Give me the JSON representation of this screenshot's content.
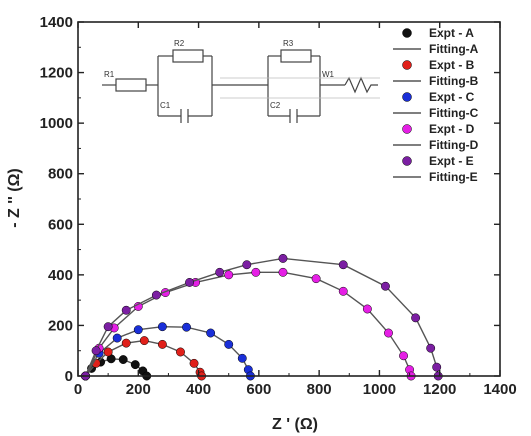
{
  "chart_data": {
    "type": "scatter",
    "xlabel": "Z ' (Ω)",
    "ylabel": "- Z '' (Ω)",
    "xlim": [
      0,
      1400
    ],
    "ylim": [
      0,
      1400
    ],
    "x_ticks": [
      "0",
      "200",
      "400",
      "600",
      "800",
      "1000",
      "1200",
      "1400"
    ],
    "y_ticks": [
      "0",
      "200",
      "400",
      "600",
      "800",
      "1000",
      "1200",
      "1400"
    ],
    "grid": false,
    "legend_position": "top-right",
    "legend": [
      "Expt - A",
      "Fitting-A",
      "Expt - B",
      "Fitting-B",
      "Expt - C",
      "Fitting-C",
      "Expt - D",
      "Fitting-D",
      "Expt - E",
      "Fitting-E"
    ],
    "series": [
      {
        "name": "Expt - A",
        "fit_name": "Fitting-A",
        "color": "#111111",
        "x": [
          25,
          45,
          75,
          110,
          150,
          190,
          215,
          228
        ],
        "y": [
          0,
          30,
          55,
          68,
          65,
          45,
          20,
          0
        ]
      },
      {
        "name": "Expt - B",
        "fit_name": "Fitting-B",
        "color": "#e0201a",
        "x": [
          25,
          60,
          100,
          160,
          220,
          280,
          340,
          385,
          405,
          410
        ],
        "y": [
          0,
          50,
          95,
          130,
          140,
          125,
          95,
          50,
          15,
          0
        ]
      },
      {
        "name": "Expt - C",
        "fit_name": "Fitting-C",
        "color": "#1a2fd8",
        "x": [
          25,
          70,
          130,
          200,
          280,
          360,
          440,
          500,
          545,
          565,
          572
        ],
        "y": [
          0,
          90,
          150,
          183,
          195,
          193,
          170,
          125,
          70,
          25,
          0
        ]
      },
      {
        "name": "Expt - D",
        "fit_name": "Fitting-D",
        "color": "#e51fe5",
        "x": [
          25,
          70,
          120,
          200,
          290,
          390,
          500,
          590,
          680,
          790,
          880,
          960,
          1030,
          1080,
          1100,
          1105
        ],
        "y": [
          0,
          110,
          190,
          275,
          330,
          370,
          400,
          410,
          410,
          385,
          335,
          265,
          170,
          80,
          25,
          0
        ]
      },
      {
        "name": "Expt - E",
        "fit_name": "Fitting-E",
        "color": "#7b1fa2",
        "x": [
          25,
          60,
          100,
          160,
          260,
          370,
          470,
          560,
          680,
          880,
          1020,
          1120,
          1170,
          1190,
          1195
        ],
        "y": [
          0,
          100,
          195,
          260,
          320,
          370,
          410,
          440,
          465,
          440,
          355,
          230,
          110,
          35,
          0
        ]
      }
    ]
  },
  "inset": {
    "labels": [
      "R1",
      "R2",
      "C1",
      "R3",
      "C2",
      "W1"
    ]
  }
}
